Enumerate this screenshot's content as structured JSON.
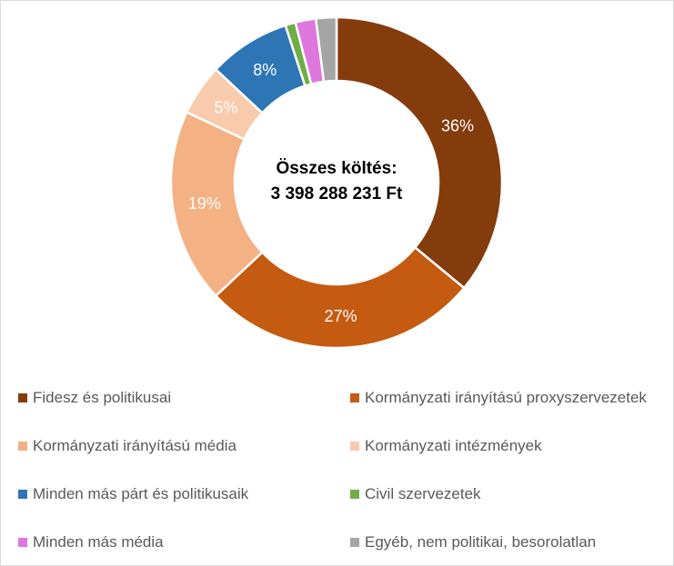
{
  "chart_data": {
    "type": "pie",
    "variant": "donut",
    "title": "",
    "center_text": [
      "Összes költés:",
      "3 398 288 231 Ft"
    ],
    "total": "3 398 288 231 Ft",
    "categories": [
      "Fidesz és politikusai",
      "Kormányzati irányítású proxyszervezetek",
      "Kormányzati irányítású média",
      "Kormányzati intézmények",
      "Minden más párt és politikusaik",
      "Civil szervezetek",
      "Minden más média",
      "Egyéb, nem politikai, besorolatlan"
    ],
    "values": [
      36,
      27,
      19,
      5,
      8,
      1,
      2,
      2
    ],
    "data_labels": [
      "36%",
      "27%",
      "19%",
      "5%",
      "8%",
      "",
      "",
      ""
    ],
    "colors": [
      "#843c0c",
      "#c55a11",
      "#f4b183",
      "#f8cbad",
      "#2e75b6",
      "#70ad47",
      "#dd77dd",
      "#a5a5a5"
    ],
    "unit": "%",
    "start_angle": "12 o'clock, clockwise",
    "legend_position": "bottom, two columns"
  },
  "center": {
    "line1": "Összes költés:",
    "line2": "3 398 288 231 Ft"
  },
  "legend": {
    "items": [
      {
        "label": "Fidesz és politikusai",
        "color": "#843c0c"
      },
      {
        "label": "Kormányzati irányítású proxyszervezetek",
        "color": "#c55a11"
      },
      {
        "label": "Kormányzati irányítású média",
        "color": "#f4b183"
      },
      {
        "label": "Kormányzati intézmények",
        "color": "#f8cbad"
      },
      {
        "label": "Minden más párt és politikusaik",
        "color": "#2e75b6"
      },
      {
        "label": "Civil szervezetek",
        "color": "#70ad47"
      },
      {
        "label": "Minden más média",
        "color": "#dd77dd"
      },
      {
        "label": "Egyéb, nem politikai, besorolatlan",
        "color": "#a5a5a5"
      }
    ]
  }
}
